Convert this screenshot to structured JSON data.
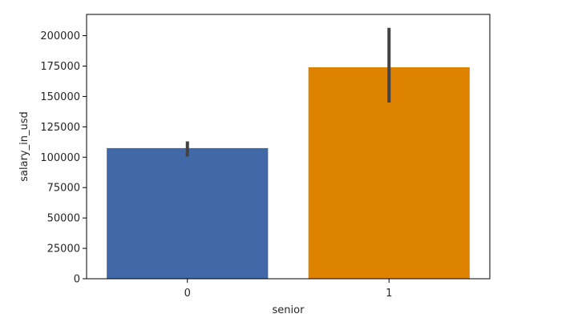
{
  "chart_data": {
    "type": "bar",
    "categories": [
      "0",
      "1"
    ],
    "values": [
      107500,
      174000
    ],
    "errors": [
      [
        100500,
        113000
      ],
      [
        145000,
        206500
      ]
    ],
    "bar_colors": [
      "#4169a8",
      "#dd8300"
    ],
    "error_color": "#424242",
    "xlabel": "senior",
    "ylabel": "salary_in_usd",
    "ylim": [
      0,
      217500
    ],
    "yticks": [
      0,
      25000,
      50000,
      75000,
      100000,
      125000,
      150000,
      175000,
      200000
    ],
    "grid": false
  }
}
